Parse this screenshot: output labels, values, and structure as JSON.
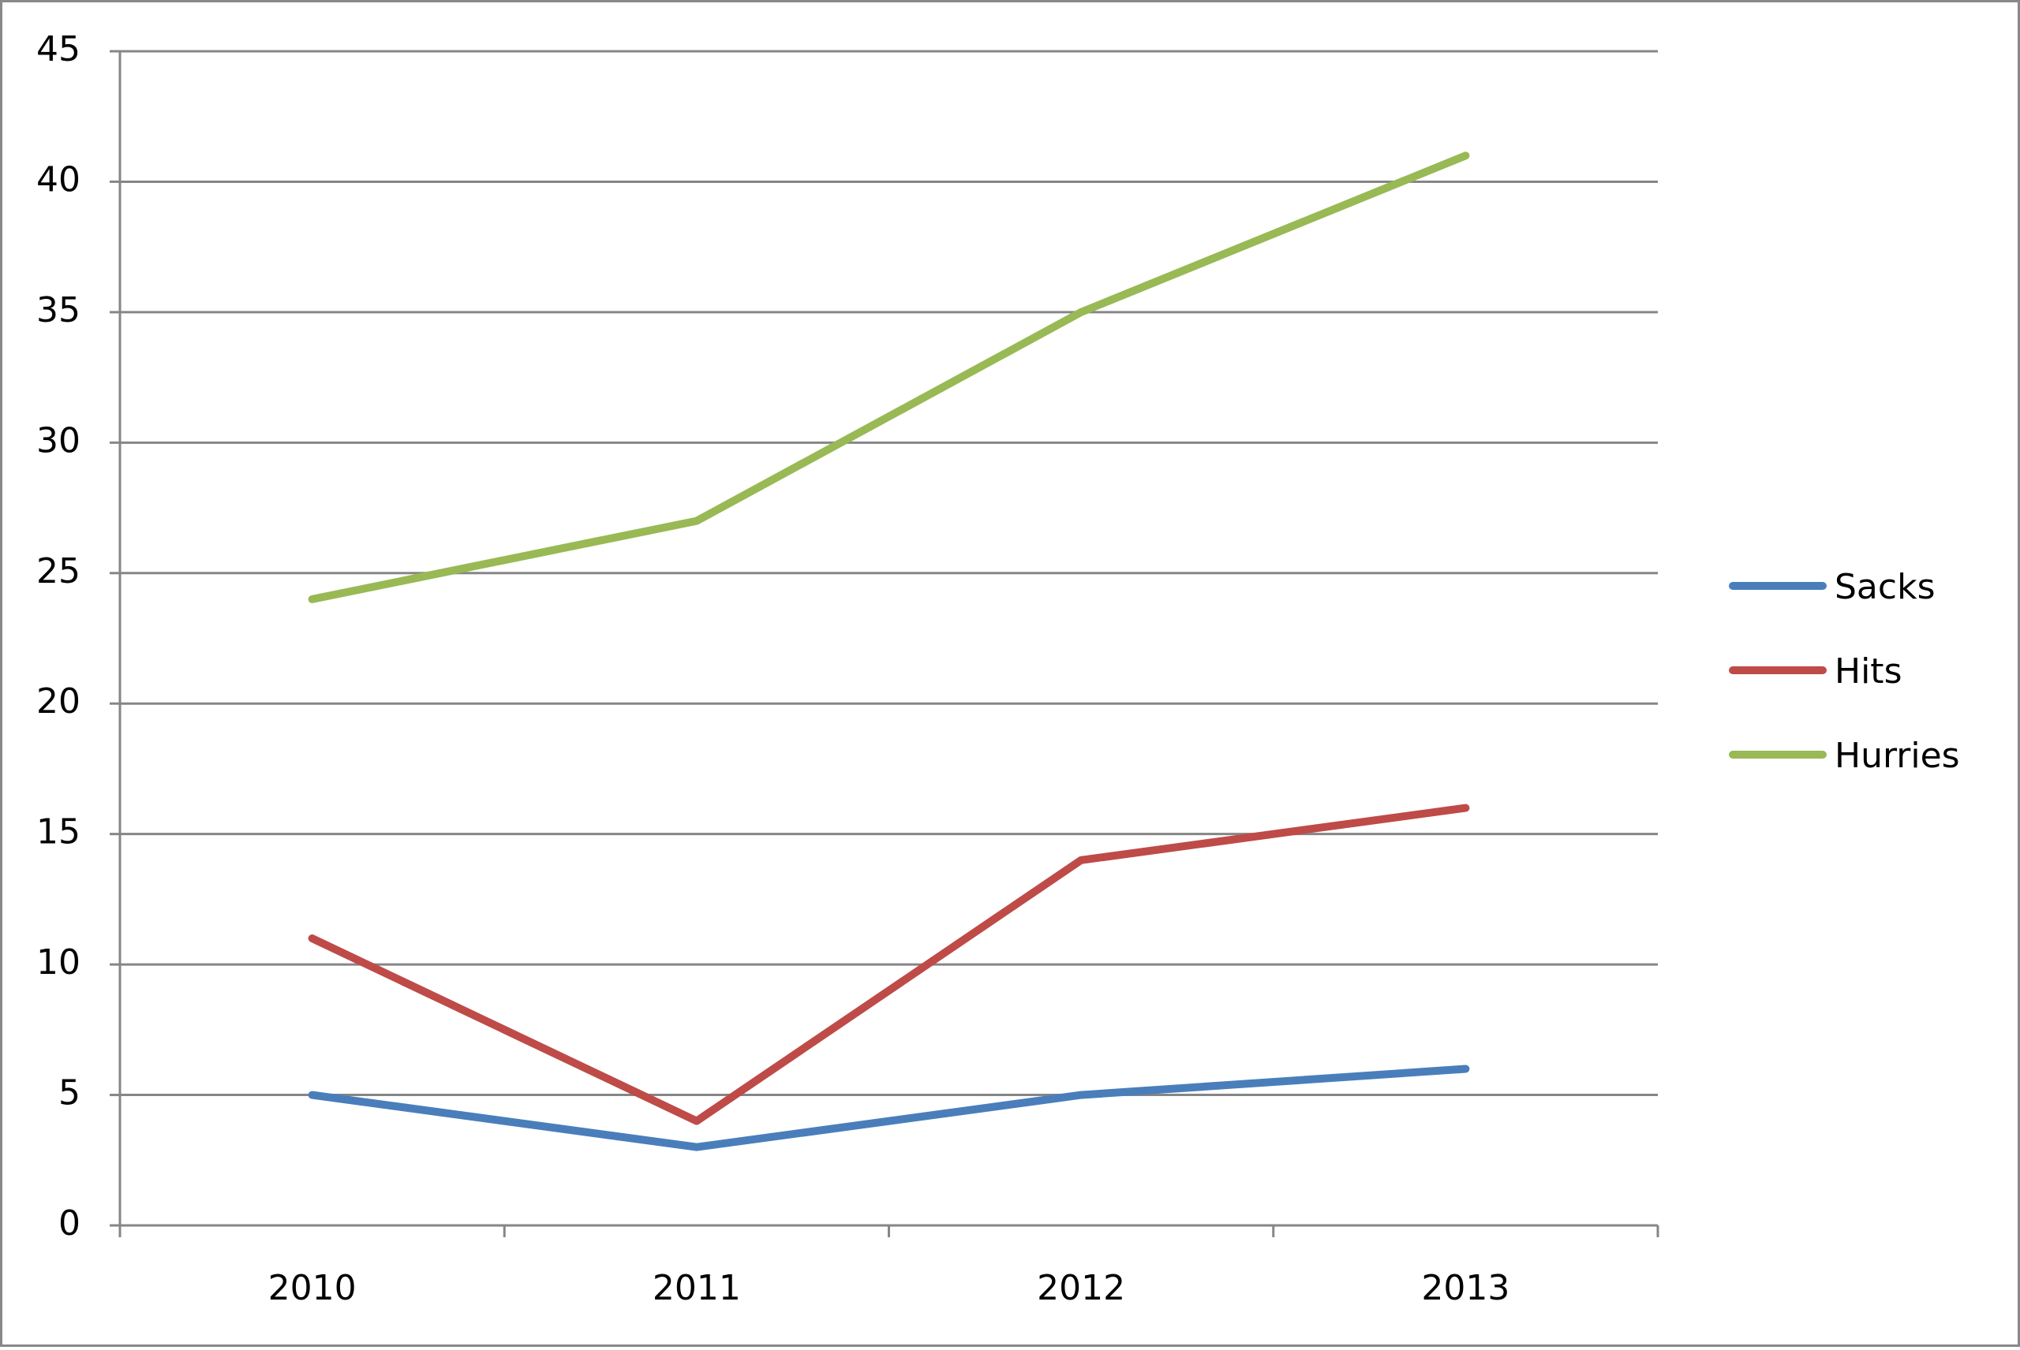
{
  "chart_data": {
    "type": "line",
    "categories": [
      "2010",
      "2011",
      "2012",
      "2013"
    ],
    "series": [
      {
        "name": "Sacks",
        "color": "#4a7ebb",
        "values": [
          5,
          3,
          5,
          6
        ]
      },
      {
        "name": "Hits",
        "color": "#be4b48",
        "values": [
          11,
          4,
          14,
          16
        ]
      },
      {
        "name": "Hurries",
        "color": "#98b954",
        "values": [
          24,
          27,
          35,
          41
        ]
      }
    ],
    "ylim": [
      0,
      45
    ],
    "yticks": [
      0,
      5,
      10,
      15,
      20,
      25,
      30,
      35,
      40,
      45
    ],
    "grid": true,
    "legend": "right"
  }
}
